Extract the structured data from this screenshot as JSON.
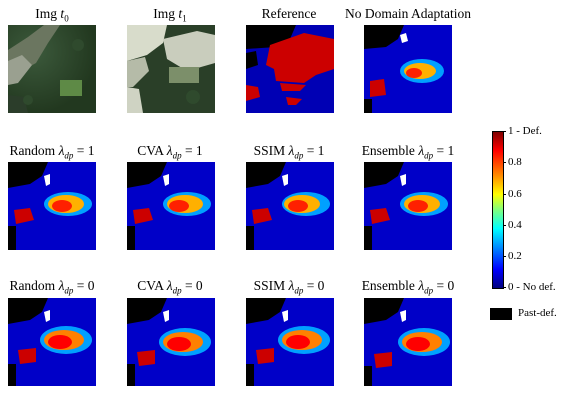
{
  "row1": {
    "titles": [
      "Img t0",
      "Img t1",
      "Reference",
      "No Domain Adaptation"
    ]
  },
  "row2": {
    "titles": [
      "Random λdp = 1",
      "CVA λdp = 1",
      "SSIM λdp = 1",
      "Ensemble λdp = 1"
    ]
  },
  "row3": {
    "titles": [
      "Random λdp = 0",
      "CVA λdp = 0",
      "SSIM λdp = 0",
      "Ensemble λdp = 0"
    ]
  },
  "colorbar": {
    "labels": [
      "1 - Def.",
      "0.8",
      "0.6",
      "0.4",
      "0.2",
      "0 - No def."
    ]
  },
  "legend": {
    "label": "Past-def."
  },
  "colors": {
    "past_def": "#000000",
    "no_def": "#00007f",
    "def": "#7f0000"
  }
}
